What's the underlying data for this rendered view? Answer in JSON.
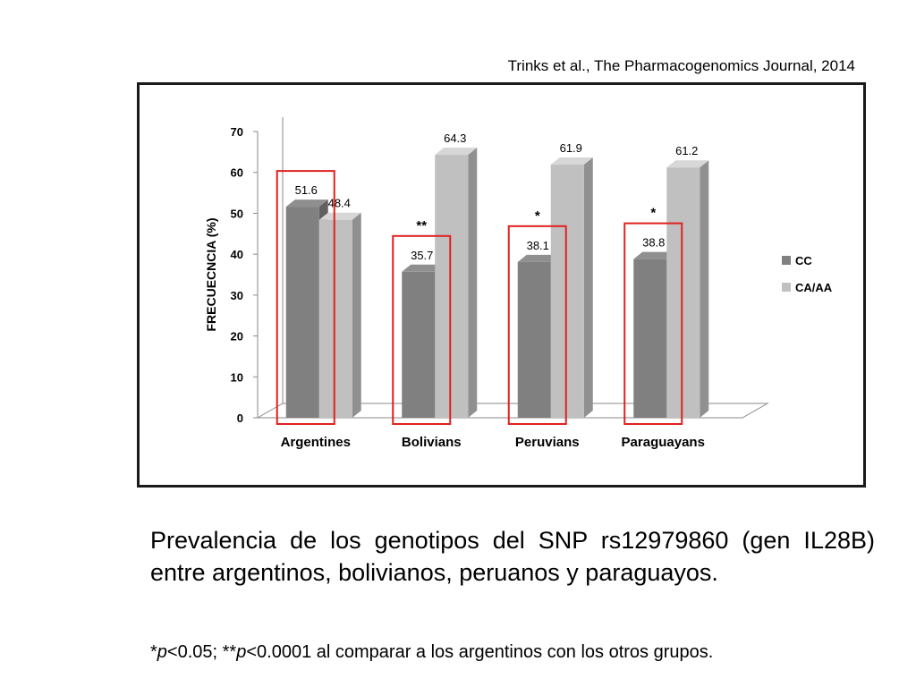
{
  "citation": "Trinks et al.,  The Pharmacogenomics Journal, 2014",
  "chart_data": {
    "type": "bar",
    "title": "",
    "ylabel": "FRECUECNCIA (%)",
    "xlabel": "",
    "ylim": [
      0,
      70
    ],
    "yticks": [
      0,
      10,
      20,
      30,
      40,
      50,
      60,
      70
    ],
    "categories": [
      "Argentines",
      "Bolivians",
      "Peruvians",
      "Paraguayans"
    ],
    "series": [
      {
        "name": "CC",
        "values": [
          51.6,
          35.7,
          38.1,
          38.8
        ],
        "color": "#808080"
      },
      {
        "name": "CA/AA",
        "values": [
          48.4,
          64.3,
          61.9,
          61.2
        ],
        "color": "#c0c0c0"
      }
    ],
    "significance": [
      "",
      "**",
      "*",
      "*"
    ],
    "highlight_color": "#e02020",
    "legend": "right",
    "grid": false
  },
  "caption": "Prevalencia de los genotipos del SNP rs12979860 (gen IL28B) entre argentinos, bolivianos, peruanos y paraguayos.",
  "footnote": {
    "sym1": "*",
    "p1": "p",
    "rest1": "<0.05; ",
    "sym2": "**",
    "p2": "p",
    "rest2": "<0.0001 al comparar a los argentinos con los otros grupos."
  }
}
